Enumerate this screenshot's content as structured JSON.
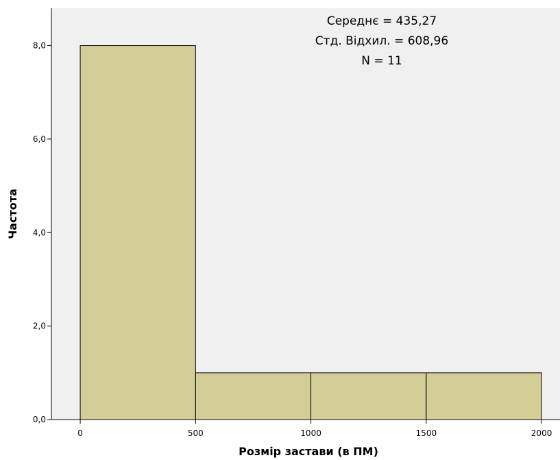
{
  "chart_data": {
    "type": "bar",
    "subtype": "histogram",
    "bins": [
      {
        "from": 0,
        "to": 500,
        "count": 8
      },
      {
        "from": 500,
        "to": 1000,
        "count": 1
      },
      {
        "from": 1000,
        "to": 1500,
        "count": 1
      },
      {
        "from": 1500,
        "to": 2000,
        "count": 1
      }
    ],
    "xlabel": "Розмір застави (в ПМ)",
    "ylabel": "Частота",
    "xlim": [
      -125,
      2080
    ],
    "ylim": [
      0,
      8.8
    ],
    "x_ticks": [
      0,
      500,
      1000,
      1500,
      2000
    ],
    "x_tick_labels": [
      "0",
      "500",
      "1000",
      "1500",
      "2000"
    ],
    "y_ticks": [
      0,
      2,
      4,
      6,
      8
    ],
    "y_tick_labels": [
      "0,0",
      "2,0",
      "4,0",
      "6,0",
      "8,0"
    ],
    "stats_lines": [
      "Середнє = 435,27",
      "Стд. Відхил. = 608,96",
      "N = 11"
    ],
    "grid": false,
    "legend": "none",
    "colors": {
      "plot_background": "#f0f0f0",
      "bar_fill": "#d3ce98",
      "bar_stroke": "#000000"
    }
  }
}
